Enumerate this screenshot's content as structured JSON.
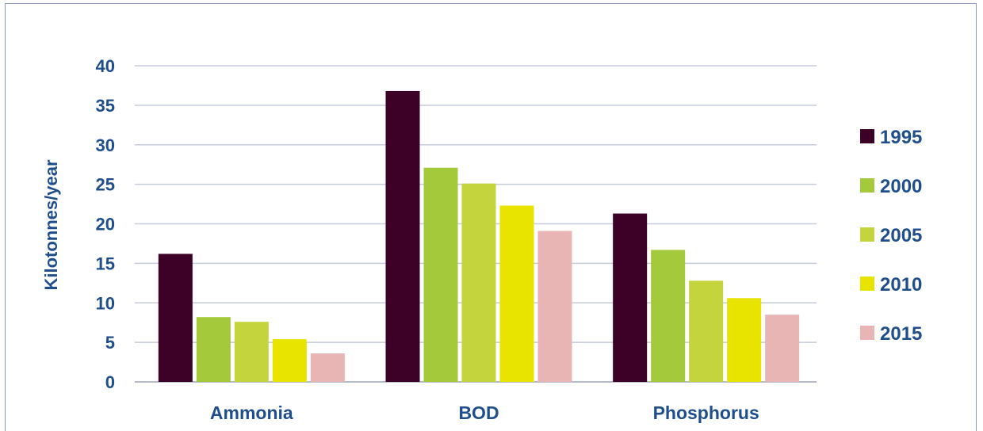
{
  "chart_data": {
    "type": "bar",
    "title": "",
    "xlabel": "",
    "ylabel": "Kilotonnes/year",
    "ylim": [
      0,
      40
    ],
    "yticks": [
      0,
      5,
      10,
      15,
      20,
      25,
      30,
      35,
      40
    ],
    "grid": true,
    "legend_position": "right",
    "categories": [
      "Ammonia",
      "BOD",
      "Phosphorus"
    ],
    "series": [
      {
        "name": "1995",
        "color": "#3d0026",
        "values": [
          16.2,
          36.8,
          21.3
        ]
      },
      {
        "name": "2000",
        "color": "#a4c93a",
        "values": [
          8.2,
          27.1,
          16.7
        ]
      },
      {
        "name": "2005",
        "color": "#c4d43c",
        "values": [
          7.6,
          25.1,
          12.8
        ]
      },
      {
        "name": "2010",
        "color": "#e8e400",
        "values": [
          5.4,
          22.3,
          10.6
        ]
      },
      {
        "name": "2015",
        "color": "#e8b4b4",
        "values": [
          3.6,
          19.1,
          8.5
        ]
      }
    ]
  }
}
